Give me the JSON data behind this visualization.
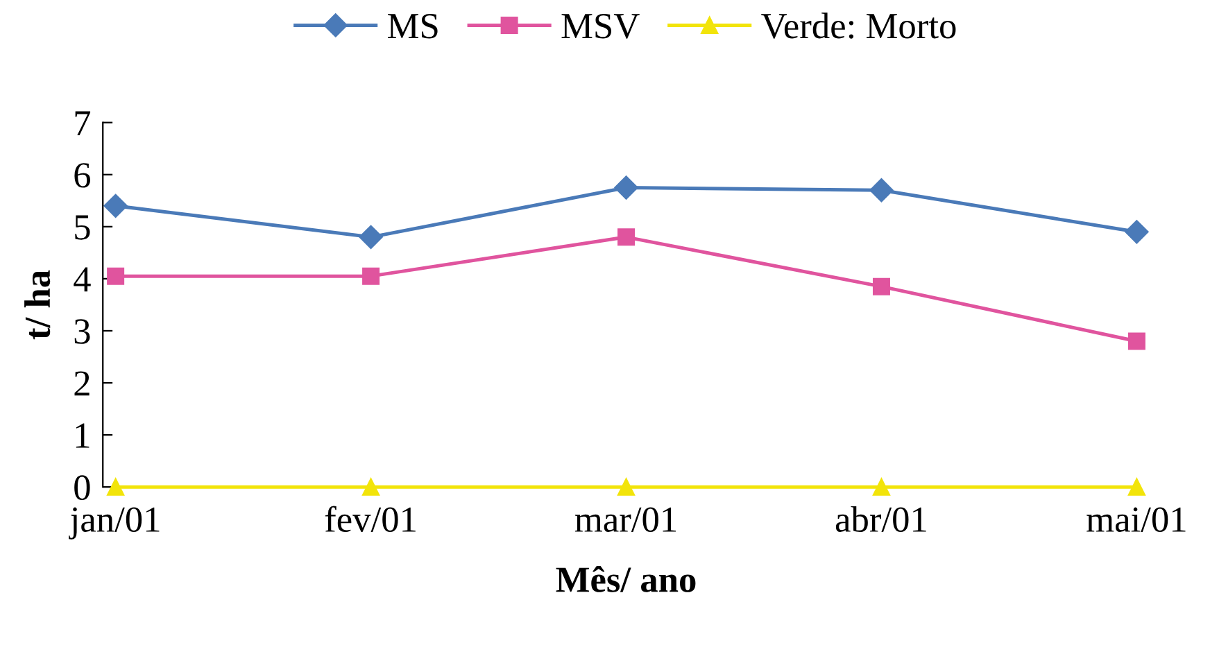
{
  "chart_data": {
    "type": "line",
    "xlabel": "Mês/ ano",
    "ylabel": "t/ ha",
    "categories": [
      "jan/01",
      "fev/01",
      "mar/01",
      "abr/01",
      "mai/01"
    ],
    "series": [
      {
        "name": "MS",
        "color": "#4a7ab8",
        "marker": "diamond",
        "values": [
          5.4,
          4.8,
          5.75,
          5.7,
          4.9
        ]
      },
      {
        "name": "MSV",
        "color": "#e0549e",
        "marker": "square",
        "values": [
          4.05,
          4.05,
          4.8,
          3.85,
          2.8
        ]
      },
      {
        "name": "Verde: Morto",
        "color": "#f2e40a",
        "marker": "triangle",
        "values": [
          0,
          0,
          0,
          0,
          0
        ]
      }
    ],
    "ylim": [
      0,
      7
    ],
    "yticks": [
      0,
      1,
      2,
      3,
      4,
      5,
      6,
      7
    ],
    "grid": false,
    "legend": "top",
    "line_style": "solid"
  }
}
